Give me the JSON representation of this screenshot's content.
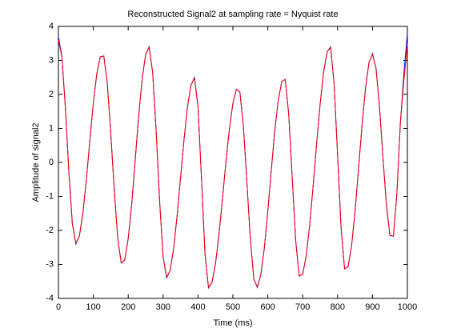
{
  "chart_data": {
    "type": "line",
    "title": "Reconstructed Signal2 at sampling rate = Nyquist rate",
    "xlabel": "Time (ms)",
    "ylabel": "Amplitude of signal2",
    "x": [
      0,
      10,
      20,
      30,
      40,
      50,
      60,
      70,
      80,
      90,
      100,
      110,
      120,
      130,
      140,
      150,
      160,
      170,
      180,
      190,
      200,
      210,
      220,
      230,
      240,
      250,
      260,
      270,
      280,
      290,
      300,
      310,
      320,
      330,
      340,
      350,
      360,
      370,
      380,
      390,
      400,
      410,
      420,
      430,
      440,
      450,
      460,
      470,
      480,
      490,
      500,
      510,
      520,
      530,
      540,
      550,
      560,
      570,
      580,
      590,
      600,
      610,
      620,
      630,
      640,
      650,
      660,
      670,
      680,
      690,
      700,
      710,
      720,
      730,
      740,
      750,
      760,
      770,
      780,
      790,
      800,
      810,
      820,
      830,
      840,
      850,
      860,
      870,
      880,
      890,
      900,
      910,
      920,
      930,
      940,
      950,
      960,
      970,
      980,
      990,
      1000
    ],
    "series": [
      {
        "color": "#0000ff",
        "values": [
          3.7,
          3.12,
          1.59,
          -0.29,
          -1.82,
          -2.4,
          -2.17,
          -1.5,
          -0.51,
          0.63,
          1.75,
          2.61,
          3.11,
          3.13,
          2.33,
          0.86,
          -0.81,
          -2.23,
          -2.96,
          -2.87,
          -2.24,
          -1.23,
          0.07,
          1.37,
          2.46,
          3.18,
          3.4,
          2.65,
          0.93,
          -1.14,
          -2.78,
          -3.4,
          -3.18,
          -2.54,
          -1.58,
          -0.45,
          0.68,
          1.64,
          2.28,
          2.5,
          1.63,
          -0.48,
          -2.69,
          -3.69,
          -3.53,
          -2.99,
          -2.13,
          -1.08,
          0.01,
          0.99,
          1.74,
          2.15,
          2.07,
          1.07,
          -0.57,
          -2.25,
          -3.44,
          -3.68,
          -3.3,
          -2.53,
          -1.44,
          -0.23,
          0.94,
          1.83,
          2.38,
          2.44,
          1.41,
          -0.45,
          -2.31,
          -3.34,
          -3.29,
          -2.75,
          -1.84,
          -0.69,
          0.56,
          1.72,
          2.66,
          3.25,
          3.4,
          2.31,
          0.22,
          -1.92,
          -3.13,
          -3.07,
          -2.46,
          -1.45,
          -0.19,
          1.08,
          2.18,
          2.94,
          3.2,
          2.78,
          1.64,
          0.14,
          -1.26,
          -2.15,
          -2.17,
          -0.9,
          1.18,
          2.6,
          3.8
        ]
      },
      {
        "color": "#ff0000",
        "values": [
          3.6,
          3.1,
          1.59,
          -0.29,
          -1.82,
          -2.38,
          -2.17,
          -1.5,
          -0.51,
          0.63,
          1.75,
          2.61,
          3.11,
          3.13,
          2.33,
          0.86,
          -0.81,
          -2.23,
          -2.96,
          -2.87,
          -2.24,
          -1.23,
          0.07,
          1.37,
          2.46,
          3.18,
          3.38,
          2.65,
          0.93,
          -1.14,
          -2.78,
          -3.38,
          -3.18,
          -2.54,
          -1.58,
          -0.45,
          0.68,
          1.64,
          2.28,
          2.48,
          1.63,
          -0.48,
          -2.69,
          -3.67,
          -3.53,
          -2.99,
          -2.13,
          -1.08,
          0.01,
          0.99,
          1.74,
          2.15,
          2.07,
          1.07,
          -0.57,
          -2.25,
          -3.44,
          -3.66,
          -3.3,
          -2.53,
          -1.44,
          -0.23,
          0.94,
          1.83,
          2.38,
          2.44,
          1.41,
          -0.45,
          -2.31,
          -3.34,
          -3.29,
          -2.75,
          -1.84,
          -0.69,
          0.56,
          1.72,
          2.66,
          3.25,
          3.38,
          2.31,
          0.22,
          -1.92,
          -3.13,
          -3.07,
          -2.46,
          -1.45,
          -0.19,
          1.08,
          2.18,
          2.94,
          3.18,
          2.78,
          1.64,
          0.14,
          -1.26,
          -2.15,
          -2.17,
          -0.9,
          1.18,
          2.4,
          3.5
        ]
      }
    ],
    "xlim": [
      0,
      1000
    ],
    "xticks": [
      0,
      100,
      200,
      300,
      400,
      500,
      600,
      700,
      800,
      900,
      1000
    ],
    "ylim": [
      -4,
      4
    ],
    "yticks": [
      -4,
      -3,
      -2,
      -1,
      0,
      1,
      2,
      3,
      4
    ]
  }
}
